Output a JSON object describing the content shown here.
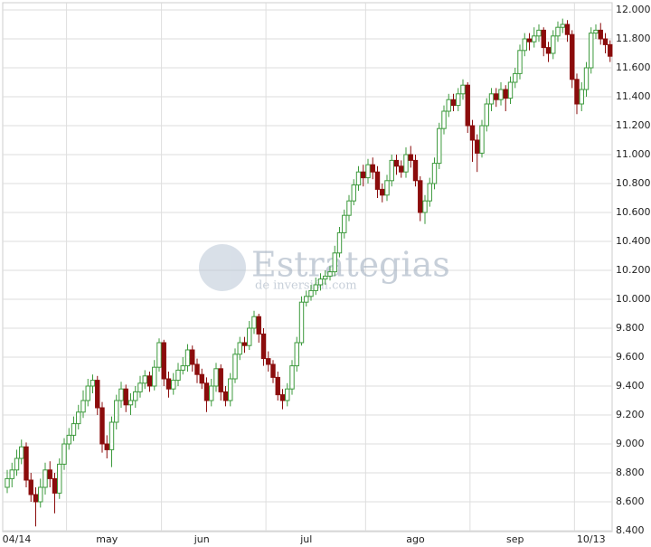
{
  "chart_data": {
    "type": "candlestick",
    "watermark": {
      "title": "Estrategias",
      "subtitle": "de inversión.com"
    },
    "up_color": "#3c9a3c",
    "down_color": "#8b0c0c",
    "grid": true,
    "ylim": [
      8400,
      12000
    ],
    "yticks": [
      {
        "value": 8400,
        "label": "8.400"
      },
      {
        "value": 8600,
        "label": "8.600"
      },
      {
        "value": 8800,
        "label": "8.800"
      },
      {
        "value": 9000,
        "label": "9.000"
      },
      {
        "value": 9200,
        "label": "9.200"
      },
      {
        "value": 9400,
        "label": "9.400"
      },
      {
        "value": 9600,
        "label": "9.600"
      },
      {
        "value": 9800,
        "label": "9.800"
      },
      {
        "value": 10000,
        "label": "10.000"
      },
      {
        "value": 10200,
        "label": "10.200"
      },
      {
        "value": 10400,
        "label": "10.400"
      },
      {
        "value": 10600,
        "label": "10.600"
      },
      {
        "value": 10800,
        "label": "10.800"
      },
      {
        "value": 11000,
        "label": "11.000"
      },
      {
        "value": 11200,
        "label": "11.200"
      },
      {
        "value": 11400,
        "label": "11.400"
      },
      {
        "value": 11600,
        "label": "11.600"
      },
      {
        "value": 11800,
        "label": "11.800"
      },
      {
        "value": 12000,
        "label": "12.000"
      }
    ],
    "xticks": [
      {
        "value": 2,
        "label": "04/14"
      },
      {
        "value": 21,
        "label": "may"
      },
      {
        "value": 41,
        "label": "jun"
      },
      {
        "value": 63,
        "label": "jul"
      },
      {
        "value": 86,
        "label": "ago"
      },
      {
        "value": 107,
        "label": "sep"
      },
      {
        "value": 123,
        "label": "10/13"
      }
    ],
    "xgrid": [
      12,
      32,
      54,
      75,
      97,
      119
    ],
    "open": [
      8700,
      8760,
      8820,
      8900,
      8980,
      8750,
      8650,
      8600,
      8700,
      8820,
      8760,
      8660,
      8860,
      9000,
      9060,
      9140,
      9220,
      9300,
      9400,
      9440,
      9250,
      9000,
      8960,
      9150,
      9300,
      9380,
      9270,
      9300,
      9360,
      9420,
      9470,
      9400,
      9530,
      9700,
      9450,
      9380,
      9440,
      9510,
      9540,
      9650,
      9550,
      9480,
      9420,
      9300,
      9400,
      9520,
      9360,
      9300,
      9450,
      9620,
      9700,
      9680,
      9800,
      9880,
      9760,
      9590,
      9550,
      9460,
      9340,
      9300,
      9380,
      9540,
      9700,
      9980,
      10020,
      10060,
      10100,
      10140,
      10160,
      10190,
      10320,
      10460,
      10580,
      10680,
      10790,
      10880,
      10840,
      10930,
      10880,
      10760,
      10720,
      10820,
      10960,
      10920,
      10880,
      11000,
      10960,
      10820,
      10600,
      10680,
      10800,
      10940,
      11180,
      11300,
      11380,
      11340,
      11420,
      11480,
      11200,
      11100,
      11010,
      11200,
      11350,
      11420,
      11380,
      11450,
      11390,
      11500,
      11560,
      11720,
      11800,
      11780,
      11820,
      11860,
      11740,
      11700,
      11820,
      11880,
      11900,
      11830,
      11520,
      11350,
      11450,
      11600,
      11840,
      11860,
      11800,
      11760
    ],
    "high": [
      8820,
      8870,
      8960,
      9030,
      9010,
      8800,
      8700,
      8760,
      8870,
      8880,
      8800,
      8900,
      9040,
      9110,
      9190,
      9270,
      9370,
      9450,
      9480,
      9470,
      9290,
      9060,
      9190,
      9340,
      9430,
      9410,
      9350,
      9400,
      9470,
      9510,
      9500,
      9580,
      9730,
      9720,
      9500,
      9490,
      9560,
      9600,
      9690,
      9680,
      9590,
      9520,
      9460,
      9450,
      9560,
      9550,
      9400,
      9490,
      9660,
      9740,
      9740,
      9850,
      9920,
      9900,
      9800,
      9640,
      9580,
      9500,
      9380,
      9420,
      9580,
      9740,
      10020,
      10060,
      10100,
      10150,
      10180,
      10200,
      10230,
      10370,
      10500,
      10620,
      10720,
      10830,
      10920,
      10930,
      10970,
      10980,
      10920,
      10800,
      10860,
      11000,
      11000,
      10960,
      11050,
      11060,
      11000,
      10850,
      10720,
      10840,
      10980,
      11220,
      11340,
      11420,
      11420,
      11460,
      11520,
      11500,
      11240,
      11140,
      11240,
      11390,
      11460,
      11460,
      11500,
      11480,
      11540,
      11600,
      11760,
      11840,
      11840,
      11880,
      11900,
      11880,
      11780,
      11860,
      11920,
      11940,
      11930,
      11860,
      11560,
      11500,
      11640,
      11880,
      11900,
      11910,
      11840,
      11790
    ],
    "low": [
      8660,
      8700,
      8780,
      8860,
      8700,
      8600,
      8430,
      8560,
      8650,
      8700,
      8520,
      8620,
      8820,
      8960,
      9020,
      9100,
      9180,
      9260,
      9350,
      9200,
      8940,
      8900,
      8840,
      9100,
      9250,
      9220,
      9200,
      9250,
      9320,
      9380,
      9360,
      9370,
      9500,
      9400,
      9320,
      9340,
      9400,
      9480,
      9500,
      9500,
      9420,
      9380,
      9220,
      9260,
      9360,
      9300,
      9260,
      9260,
      9420,
      9580,
      9630,
      9650,
      9760,
      9700,
      9540,
      9500,
      9420,
      9300,
      9240,
      9260,
      9340,
      9500,
      9680,
      9950,
      9990,
      10030,
      10060,
      10100,
      10130,
      10160,
      10290,
      10420,
      10540,
      10650,
      10750,
      10780,
      10800,
      10830,
      10700,
      10670,
      10680,
      10780,
      10860,
      10840,
      10840,
      10910,
      10780,
      10540,
      10520,
      10640,
      10760,
      10900,
      11140,
      11260,
      11300,
      11300,
      11380,
      11150,
      10950,
      10880,
      10980,
      11160,
      11300,
      11330,
      11340,
      11300,
      11350,
      11460,
      11520,
      11680,
      11720,
      11740,
      11780,
      11680,
      11640,
      11660,
      11780,
      11840,
      11780,
      11460,
      11280,
      11300,
      11400,
      11560,
      11800,
      11760,
      11700,
      11640
    ],
    "close": [
      8760,
      8820,
      8900,
      8980,
      8750,
      8650,
      8600,
      8700,
      8820,
      8760,
      8660,
      8860,
      9000,
      9060,
      9140,
      9220,
      9300,
      9400,
      9440,
      9250,
      9000,
      8960,
      9150,
      9300,
      9380,
      9270,
      9300,
      9360,
      9420,
      9470,
      9400,
      9530,
      9700,
      9450,
      9380,
      9440,
      9510,
      9540,
      9650,
      9550,
      9480,
      9420,
      9300,
      9400,
      9520,
      9360,
      9300,
      9450,
      9620,
      9700,
      9680,
      9800,
      9880,
      9760,
      9590,
      9550,
      9460,
      9340,
      9300,
      9380,
      9540,
      9700,
      9980,
      10020,
      10060,
      10100,
      10140,
      10160,
      10190,
      10320,
      10460,
      10580,
      10680,
      10790,
      10880,
      10840,
      10930,
      10880,
      10760,
      10720,
      10820,
      10960,
      10920,
      10880,
      11000,
      10960,
      10820,
      10600,
      10680,
      10800,
      10940,
      11180,
      11300,
      11380,
      11340,
      11420,
      11480,
      11200,
      11100,
      11010,
      11200,
      11350,
      11420,
      11380,
      11450,
      11390,
      11500,
      11560,
      11720,
      11800,
      11780,
      11820,
      11860,
      11740,
      11700,
      11820,
      11880,
      11900,
      11830,
      11520,
      11350,
      11450,
      11600,
      11840,
      11860,
      11800,
      11760,
      11680
    ]
  }
}
